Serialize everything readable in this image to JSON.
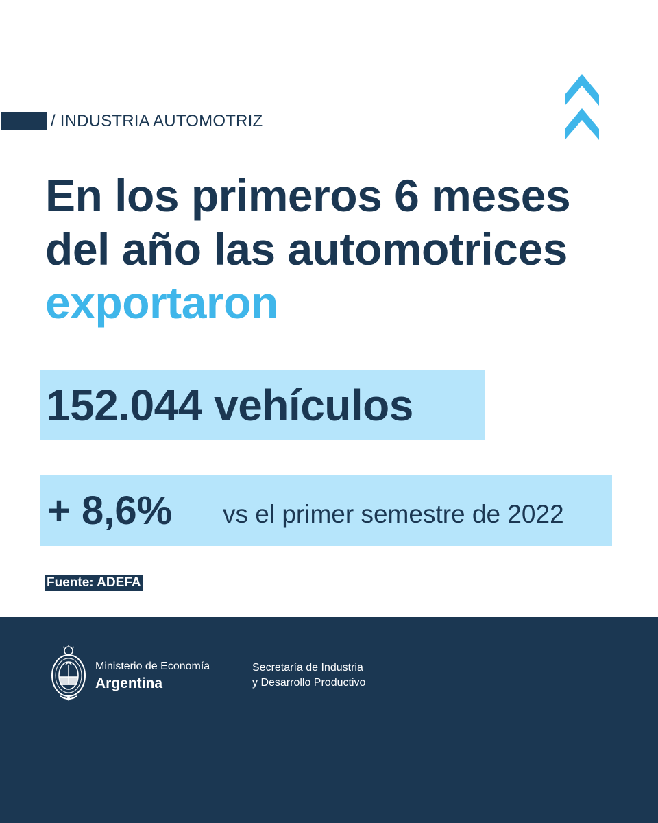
{
  "category": {
    "label": "/ INDUSTRIA AUTOMOTRIZ"
  },
  "headline": {
    "line1": "En los primeros 6 meses",
    "line2": "del año las automotrices",
    "line3": "exportaron"
  },
  "stat": {
    "value": "152.044 vehículos"
  },
  "delta": {
    "value": "+ 8,6%",
    "caption": "vs el primer semestre de 2022"
  },
  "source": {
    "label": "Fuente: ADEFA"
  },
  "footer": {
    "ministry_name": "Ministerio de Economía",
    "ministry_country": "Argentina",
    "secretaria_line1": "Secretaría de Industria",
    "secretaria_line2": "y Desarrollo Productivo"
  },
  "icons": {
    "chevrons": "double-chevron-up-icon",
    "emblem": "coat-of-arms-icon"
  },
  "colors": {
    "navy": "#1b3752",
    "accent": "#3fb6ea",
    "highlight": "#b6e5fb"
  }
}
